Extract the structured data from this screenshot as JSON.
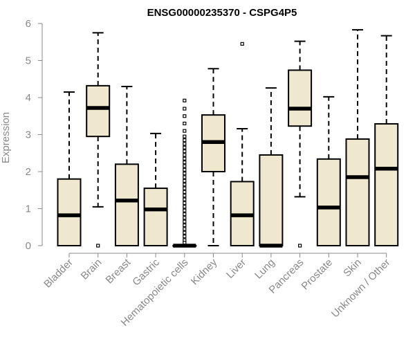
{
  "chart_data": {
    "type": "boxplot",
    "title": "ENSG00000235370 - CSPG4P5",
    "xlabel": "",
    "ylabel": "Expression",
    "ylim": [
      0,
      6
    ],
    "yticks": [
      0,
      1,
      2,
      3,
      4,
      5,
      6
    ],
    "grid": false,
    "box_fill": "#efe8cf",
    "box_stroke": "#000000",
    "axis_color": "#888888",
    "categories": [
      "Bladder",
      "Brain",
      "Breast",
      "Gastric",
      "Hematopoietic cells",
      "Kidney",
      "Liver",
      "Lung",
      "Pancreas",
      "Prostate",
      "Skin",
      "Unknown / Other"
    ],
    "boxes": [
      {
        "q1": 0,
        "median": 0.82,
        "q3": 1.8,
        "whisker_low": 0,
        "whisker_high": 4.15,
        "outliers": []
      },
      {
        "q1": 2.95,
        "median": 3.72,
        "q3": 4.32,
        "whisker_low": 1.05,
        "whisker_high": 5.75,
        "outliers": [
          0
        ]
      },
      {
        "q1": 0,
        "median": 1.22,
        "q3": 2.2,
        "whisker_low": 0,
        "whisker_high": 4.3,
        "outliers": []
      },
      {
        "q1": 0,
        "median": 0.98,
        "q3": 1.55,
        "whisker_low": 0,
        "whisker_high": 3.03,
        "outliers": []
      },
      {
        "q1": 0,
        "median": 0,
        "q3": 0,
        "whisker_low": 0,
        "whisker_high": 0,
        "outliers": [
          3.92,
          3.7,
          3.5,
          3.3,
          3.1,
          2.95,
          2.85,
          2.75,
          2.65,
          2.55,
          2.45,
          2.35,
          2.25,
          2.15,
          2.05,
          1.95,
          1.85,
          1.75,
          1.65,
          1.55,
          1.45,
          1.35,
          1.25,
          1.15,
          1.05,
          0.95,
          0.85,
          0.75,
          0.65,
          0.55,
          0.45,
          0.35,
          0.25,
          0.15,
          0.08
        ]
      },
      {
        "q1": 2.0,
        "median": 2.8,
        "q3": 3.53,
        "whisker_low": 0,
        "whisker_high": 4.78,
        "outliers": []
      },
      {
        "q1": 0,
        "median": 0.82,
        "q3": 1.73,
        "whisker_low": 0,
        "whisker_high": 3.16,
        "outliers": [
          5.45
        ]
      },
      {
        "q1": 0,
        "median": 0,
        "q3": 2.45,
        "whisker_low": 0,
        "whisker_high": 4.26,
        "outliers": []
      },
      {
        "q1": 3.23,
        "median": 3.7,
        "q3": 4.74,
        "whisker_low": 1.32,
        "whisker_high": 5.52,
        "outliers": [
          0
        ]
      },
      {
        "q1": 0,
        "median": 1.03,
        "q3": 2.34,
        "whisker_low": 0,
        "whisker_high": 4.02,
        "outliers": []
      },
      {
        "q1": 0,
        "median": 1.85,
        "q3": 2.88,
        "whisker_low": 0,
        "whisker_high": 5.83,
        "outliers": []
      },
      {
        "q1": 0,
        "median": 2.08,
        "q3": 3.29,
        "whisker_low": 0,
        "whisker_high": 5.67,
        "outliers": []
      }
    ]
  }
}
